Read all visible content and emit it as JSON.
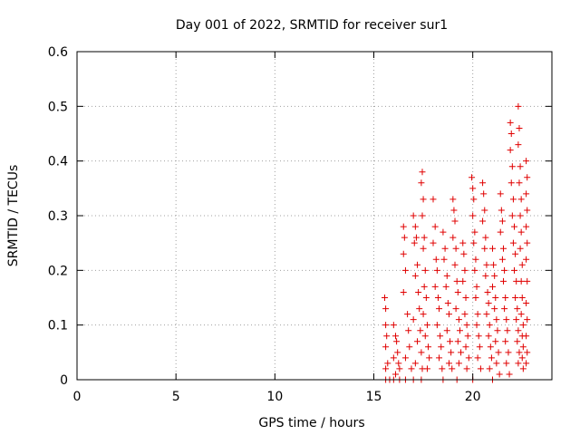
{
  "chart_data": {
    "type": "scatter",
    "title": "Day 001 of 2022, SRMTID for receiver sur1",
    "xlabel": "GPS time / hours",
    "ylabel": "SRMTID / TECUs",
    "xlim": [
      0,
      24
    ],
    "ylim": [
      0,
      0.6
    ],
    "xticks": [
      0,
      5,
      10,
      15,
      20
    ],
    "yticks": [
      0,
      0.1,
      0.2,
      0.3,
      0.4,
      0.5,
      0.6
    ],
    "xtick_labels": [
      "0",
      "5",
      "10",
      "15",
      "20"
    ],
    "ytick_labels": [
      "0",
      "0.1",
      "0.2",
      "0.3",
      "0.4",
      "0.5",
      "0.6"
    ],
    "grid": true,
    "marker": "+",
    "color": "#e00000",
    "series": [
      {
        "name": "sur1",
        "points": [
          [
            15.6,
            0.0
          ],
          [
            15.8,
            0.0
          ],
          [
            16.0,
            0.0
          ],
          [
            16.3,
            0.0
          ],
          [
            16.6,
            0.0
          ],
          [
            17.0,
            0.0
          ],
          [
            17.4,
            0.0
          ],
          [
            18.5,
            0.0
          ],
          [
            19.2,
            0.0
          ],
          [
            20.0,
            0.0
          ],
          [
            21.0,
            0.0
          ],
          [
            15.55,
            0.15
          ],
          [
            15.6,
            0.13
          ],
          [
            15.6,
            0.1
          ],
          [
            15.65,
            0.08
          ],
          [
            15.6,
            0.06
          ],
          [
            15.7,
            0.03
          ],
          [
            15.6,
            0.02
          ],
          [
            16.0,
            0.1
          ],
          [
            16.1,
            0.08
          ],
          [
            16.15,
            0.07
          ],
          [
            16.2,
            0.05
          ],
          [
            16.0,
            0.04
          ],
          [
            16.25,
            0.03
          ],
          [
            16.3,
            0.02
          ],
          [
            16.1,
            0.01
          ],
          [
            16.5,
            0.23
          ],
          [
            16.55,
            0.26
          ],
          [
            16.5,
            0.28
          ],
          [
            16.6,
            0.2
          ],
          [
            16.5,
            0.16
          ],
          [
            16.7,
            0.12
          ],
          [
            16.75,
            0.09
          ],
          [
            16.8,
            0.06
          ],
          [
            16.6,
            0.04
          ],
          [
            16.9,
            0.02
          ],
          [
            17.0,
            0.3
          ],
          [
            17.1,
            0.28
          ],
          [
            17.15,
            0.26
          ],
          [
            17.05,
            0.25
          ],
          [
            17.2,
            0.21
          ],
          [
            17.1,
            0.19
          ],
          [
            17.25,
            0.16
          ],
          [
            17.3,
            0.13
          ],
          [
            17.0,
            0.11
          ],
          [
            17.35,
            0.09
          ],
          [
            17.2,
            0.07
          ],
          [
            17.4,
            0.05
          ],
          [
            17.1,
            0.03
          ],
          [
            17.45,
            0.02
          ],
          [
            17.45,
            0.38
          ],
          [
            17.4,
            0.36
          ],
          [
            17.5,
            0.33
          ],
          [
            17.45,
            0.3
          ],
          [
            17.55,
            0.26
          ],
          [
            17.5,
            0.24
          ],
          [
            17.6,
            0.2
          ],
          [
            17.55,
            0.17
          ],
          [
            17.65,
            0.15
          ],
          [
            17.5,
            0.12
          ],
          [
            17.7,
            0.1
          ],
          [
            17.6,
            0.08
          ],
          [
            17.75,
            0.06
          ],
          [
            17.8,
            0.04
          ],
          [
            17.7,
            0.02
          ],
          [
            18.0,
            0.33
          ],
          [
            18.1,
            0.28
          ],
          [
            18.0,
            0.25
          ],
          [
            18.15,
            0.22
          ],
          [
            18.2,
            0.2
          ],
          [
            18.1,
            0.17
          ],
          [
            18.25,
            0.15
          ],
          [
            18.3,
            0.13
          ],
          [
            18.2,
            0.1
          ],
          [
            18.35,
            0.08
          ],
          [
            18.4,
            0.06
          ],
          [
            18.3,
            0.04
          ],
          [
            18.45,
            0.02
          ],
          [
            18.5,
            0.27
          ],
          [
            18.6,
            0.24
          ],
          [
            18.55,
            0.22
          ],
          [
            18.7,
            0.19
          ],
          [
            18.65,
            0.17
          ],
          [
            18.75,
            0.14
          ],
          [
            18.8,
            0.12
          ],
          [
            18.7,
            0.09
          ],
          [
            18.85,
            0.07
          ],
          [
            18.9,
            0.05
          ],
          [
            18.8,
            0.03
          ],
          [
            18.95,
            0.02
          ],
          [
            19.0,
            0.33
          ],
          [
            19.05,
            0.31
          ],
          [
            19.1,
            0.29
          ],
          [
            19.0,
            0.26
          ],
          [
            19.15,
            0.24
          ],
          [
            19.1,
            0.21
          ],
          [
            19.2,
            0.18
          ],
          [
            19.25,
            0.16
          ],
          [
            19.15,
            0.13
          ],
          [
            19.3,
            0.11
          ],
          [
            19.35,
            0.09
          ],
          [
            19.25,
            0.07
          ],
          [
            19.4,
            0.05
          ],
          [
            19.3,
            0.03
          ],
          [
            19.5,
            0.25
          ],
          [
            19.55,
            0.23
          ],
          [
            19.6,
            0.2
          ],
          [
            19.5,
            0.18
          ],
          [
            19.65,
            0.15
          ],
          [
            19.6,
            0.12
          ],
          [
            19.7,
            0.1
          ],
          [
            19.75,
            0.08
          ],
          [
            19.65,
            0.06
          ],
          [
            19.8,
            0.04
          ],
          [
            19.7,
            0.02
          ],
          [
            19.95,
            0.37
          ],
          [
            20.0,
            0.35
          ],
          [
            20.05,
            0.33
          ],
          [
            20.0,
            0.3
          ],
          [
            20.1,
            0.27
          ],
          [
            20.05,
            0.25
          ],
          [
            20.15,
            0.22
          ],
          [
            20.1,
            0.2
          ],
          [
            20.2,
            0.17
          ],
          [
            20.15,
            0.15
          ],
          [
            20.25,
            0.12
          ],
          [
            20.2,
            0.1
          ],
          [
            20.3,
            0.08
          ],
          [
            20.35,
            0.06
          ],
          [
            20.25,
            0.04
          ],
          [
            20.4,
            0.02
          ],
          [
            20.5,
            0.36
          ],
          [
            20.55,
            0.34
          ],
          [
            20.6,
            0.31
          ],
          [
            20.5,
            0.29
          ],
          [
            20.65,
            0.26
          ],
          [
            20.6,
            0.24
          ],
          [
            20.7,
            0.21
          ],
          [
            20.65,
            0.19
          ],
          [
            20.75,
            0.16
          ],
          [
            20.8,
            0.14
          ],
          [
            20.7,
            0.12
          ],
          [
            20.85,
            0.1
          ],
          [
            20.8,
            0.08
          ],
          [
            20.9,
            0.06
          ],
          [
            20.95,
            0.04
          ],
          [
            20.85,
            0.02
          ],
          [
            21.0,
            0.24
          ],
          [
            21.05,
            0.21
          ],
          [
            21.1,
            0.19
          ],
          [
            21.0,
            0.17
          ],
          [
            21.15,
            0.15
          ],
          [
            21.1,
            0.13
          ],
          [
            21.2,
            0.11
          ],
          [
            21.25,
            0.09
          ],
          [
            21.15,
            0.07
          ],
          [
            21.3,
            0.05
          ],
          [
            21.2,
            0.03
          ],
          [
            21.35,
            0.01
          ],
          [
            21.4,
            0.34
          ],
          [
            21.45,
            0.31
          ],
          [
            21.5,
            0.29
          ],
          [
            21.4,
            0.27
          ],
          [
            21.55,
            0.24
          ],
          [
            21.5,
            0.22
          ],
          [
            21.6,
            0.2
          ],
          [
            21.55,
            0.18
          ],
          [
            21.65,
            0.15
          ],
          [
            21.6,
            0.13
          ],
          [
            21.7,
            0.11
          ],
          [
            21.75,
            0.09
          ],
          [
            21.65,
            0.07
          ],
          [
            21.8,
            0.05
          ],
          [
            21.7,
            0.03
          ],
          [
            21.85,
            0.01
          ],
          [
            21.9,
            0.47
          ],
          [
            21.95,
            0.45
          ],
          [
            21.9,
            0.42
          ],
          [
            22.0,
            0.39
          ],
          [
            21.95,
            0.36
          ],
          [
            22.05,
            0.33
          ],
          [
            22.0,
            0.3
          ],
          [
            22.1,
            0.28
          ],
          [
            22.05,
            0.25
          ],
          [
            22.15,
            0.23
          ],
          [
            22.1,
            0.2
          ],
          [
            22.2,
            0.18
          ],
          [
            22.15,
            0.15
          ],
          [
            22.25,
            0.13
          ],
          [
            22.2,
            0.11
          ],
          [
            22.3,
            0.09
          ],
          [
            22.25,
            0.07
          ],
          [
            22.35,
            0.05
          ],
          [
            22.3,
            0.03
          ],
          [
            22.3,
            0.5
          ],
          [
            22.35,
            0.46
          ],
          [
            22.3,
            0.43
          ],
          [
            22.4,
            0.39
          ],
          [
            22.35,
            0.36
          ],
          [
            22.45,
            0.33
          ],
          [
            22.4,
            0.3
          ],
          [
            22.45,
            0.27
          ],
          [
            22.4,
            0.24
          ],
          [
            22.5,
            0.21
          ],
          [
            22.45,
            0.18
          ],
          [
            22.5,
            0.15
          ],
          [
            22.45,
            0.12
          ],
          [
            22.55,
            0.1
          ],
          [
            22.5,
            0.08
          ],
          [
            22.55,
            0.06
          ],
          [
            22.5,
            0.04
          ],
          [
            22.55,
            0.02
          ],
          [
            22.7,
            0.4
          ],
          [
            22.75,
            0.37
          ],
          [
            22.7,
            0.34
          ],
          [
            22.75,
            0.31
          ],
          [
            22.7,
            0.28
          ],
          [
            22.75,
            0.25
          ],
          [
            22.7,
            0.22
          ],
          [
            22.75,
            0.18
          ],
          [
            22.7,
            0.14
          ],
          [
            22.75,
            0.11
          ],
          [
            22.7,
            0.08
          ],
          [
            22.75,
            0.05
          ],
          [
            22.7,
            0.03
          ]
        ]
      }
    ]
  }
}
